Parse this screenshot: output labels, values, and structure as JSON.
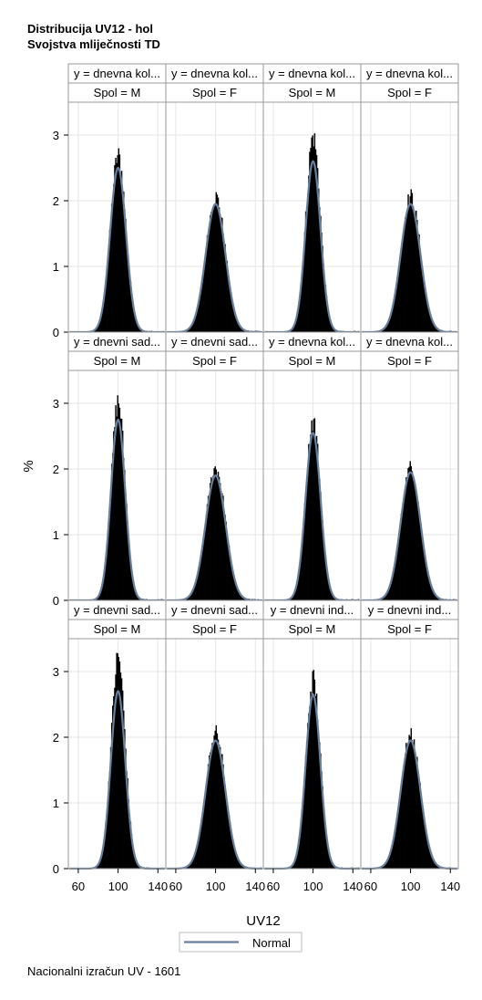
{
  "titles": {
    "line1": "Distribucija UV12 - hol",
    "line2": "Svojstva mliječnosti TD"
  },
  "footer": "Nacionalni izračun UV - 1601",
  "colors": {
    "histogram": "#000000",
    "normal_curve": "#667f9c",
    "frame": "#999999",
    "header_bg": "#ffffff",
    "grid": "#e6e6e6"
  },
  "chart_data": {
    "type": "histogram-panel",
    "xlabel": "UV12",
    "ylabel": "%",
    "xlim": [
      50,
      148
    ],
    "ylim": [
      0,
      3.5
    ],
    "x_ticks": [
      60,
      100,
      140
    ],
    "y_ticks": [
      0,
      1,
      2,
      3
    ],
    "legend": {
      "entries": [
        "Normal"
      ],
      "position": "bottom-center"
    },
    "grid": true,
    "rows": [
      [
        {
          "col_header": "y = dnevna kol...",
          "row_header": "Spol = M",
          "hist_peak": 2.8,
          "normal_peak": 2.5,
          "sd": 8.0
        },
        {
          "col_header": "y = dnevna kol...",
          "row_header": "Spol = F",
          "hist_peak": 2.15,
          "normal_peak": 1.95,
          "sd": 10.0
        },
        {
          "col_header": "y = dnevna kol...",
          "row_header": "Spol = M",
          "hist_peak": 3.1,
          "normal_peak": 2.6,
          "sd": 7.5
        },
        {
          "col_header": "y = dnevna kol...",
          "row_header": "Spol = F",
          "hist_peak": 2.15,
          "normal_peak": 1.95,
          "sd": 10.0
        }
      ],
      [
        {
          "col_header": "y = dnevni sad...",
          "row_header": "Spol = M",
          "hist_peak": 3.15,
          "normal_peak": 2.75,
          "sd": 7.2
        },
        {
          "col_header": "y = dnevni sad...",
          "row_header": "Spol = F",
          "hist_peak": 2.1,
          "normal_peak": 1.9,
          "sd": 10.2
        },
        {
          "col_header": "y = dnevna kol...",
          "row_header": "Spol = M",
          "hist_peak": 2.85,
          "normal_peak": 2.55,
          "sd": 7.6
        },
        {
          "col_header": "y = dnevna kol...",
          "row_header": "Spol = F",
          "hist_peak": 2.1,
          "normal_peak": 1.95,
          "sd": 10.0
        }
      ],
      [
        {
          "col_header": "y = dnevni sad...",
          "row_header": "Spol = M",
          "hist_peak": 3.35,
          "normal_peak": 2.7,
          "sd": 7.3
        },
        {
          "col_header": "y = dnevni sad...",
          "row_header": "Spol = F",
          "hist_peak": 2.15,
          "normal_peak": 1.95,
          "sd": 10.0
        },
        {
          "col_header": "y = dnevni ind...",
          "row_header": "Spol = M",
          "hist_peak": 3.0,
          "normal_peak": 2.65,
          "sd": 7.4
        },
        {
          "col_header": "y = dnevni ind...",
          "row_header": "Spol = F",
          "hist_peak": 2.1,
          "normal_peak": 1.95,
          "sd": 10.0
        }
      ]
    ]
  }
}
